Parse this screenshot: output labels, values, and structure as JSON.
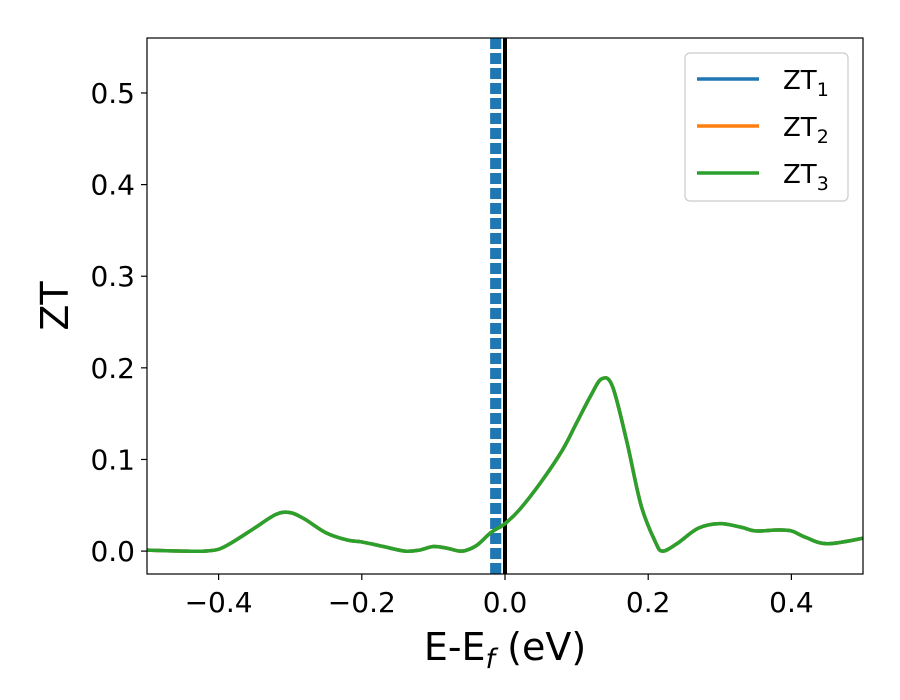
{
  "chart_data": {
    "type": "line",
    "xlabel": "E-E",
    "xlabel_sub": "f",
    "xlabel_unit": "(eV)",
    "ylabel": "ZT",
    "xlim": [
      -0.5,
      0.5
    ],
    "ylim": [
      -0.025,
      0.56
    ],
    "xticks": [
      -0.4,
      -0.2,
      0.0,
      0.2,
      0.4
    ],
    "xtick_labels": [
      "−0.4",
      "−0.2",
      "0.0",
      "0.2",
      "0.4"
    ],
    "yticks": [
      0.0,
      0.1,
      0.2,
      0.3,
      0.4,
      0.5
    ],
    "ytick_labels": [
      "0.0",
      "0.1",
      "0.2",
      "0.3",
      "0.4",
      "0.5"
    ],
    "grid": false,
    "legend_position": "top-right",
    "x": [
      -0.5,
      -0.45,
      -0.42,
      -0.4,
      -0.38,
      -0.35,
      -0.32,
      -0.3,
      -0.28,
      -0.25,
      -0.22,
      -0.2,
      -0.17,
      -0.14,
      -0.12,
      -0.1,
      -0.08,
      -0.06,
      -0.04,
      -0.02,
      0.0,
      0.02,
      0.05,
      0.08,
      0.1,
      0.12,
      0.135,
      0.15,
      0.17,
      0.19,
      0.21,
      0.22,
      0.24,
      0.27,
      0.3,
      0.33,
      0.35,
      0.38,
      0.4,
      0.42,
      0.45,
      0.5
    ],
    "series": [
      {
        "name": "ZT",
        "name_sub": "1",
        "color": "#1f77b4",
        "values": [
          0.001,
          0.0,
          0.0,
          0.002,
          0.01,
          0.025,
          0.04,
          0.042,
          0.035,
          0.02,
          0.012,
          0.01,
          0.005,
          0.0,
          0.001,
          0.005,
          0.003,
          0.0,
          0.006,
          0.02,
          0.03,
          0.045,
          0.075,
          0.11,
          0.14,
          0.17,
          0.188,
          0.18,
          0.12,
          0.05,
          0.01,
          0.0,
          0.008,
          0.025,
          0.03,
          0.026,
          0.022,
          0.023,
          0.022,
          0.015,
          0.008,
          0.014
        ]
      },
      {
        "name": "ZT",
        "name_sub": "2",
        "color": "#ff7f0e",
        "values": [
          0.001,
          0.0,
          0.0,
          0.002,
          0.01,
          0.025,
          0.04,
          0.042,
          0.035,
          0.02,
          0.012,
          0.01,
          0.005,
          0.0,
          0.001,
          0.005,
          0.003,
          0.0,
          0.006,
          0.02,
          0.03,
          0.045,
          0.075,
          0.11,
          0.14,
          0.17,
          0.188,
          0.18,
          0.12,
          0.05,
          0.01,
          0.0,
          0.008,
          0.025,
          0.03,
          0.026,
          0.022,
          0.023,
          0.022,
          0.015,
          0.008,
          0.014
        ]
      },
      {
        "name": "ZT",
        "name_sub": "3",
        "color": "#2ca02c",
        "values": [
          0.001,
          0.0,
          0.0,
          0.002,
          0.01,
          0.025,
          0.04,
          0.042,
          0.035,
          0.02,
          0.012,
          0.01,
          0.005,
          0.0,
          0.001,
          0.005,
          0.003,
          0.0,
          0.006,
          0.02,
          0.03,
          0.045,
          0.075,
          0.11,
          0.14,
          0.17,
          0.188,
          0.18,
          0.12,
          0.05,
          0.01,
          0.0,
          0.008,
          0.025,
          0.03,
          0.026,
          0.022,
          0.023,
          0.022,
          0.015,
          0.008,
          0.014
        ]
      }
    ],
    "vlines": [
      {
        "x": -0.018,
        "color": "#1f77b4",
        "style": "dashed"
      },
      {
        "x": -0.013,
        "color": "#1f77b4",
        "style": "dashed"
      },
      {
        "x": -0.008,
        "color": "#1f77b4",
        "style": "dashed"
      },
      {
        "x": 0.0,
        "color": "#000000",
        "style": "solid"
      }
    ]
  }
}
